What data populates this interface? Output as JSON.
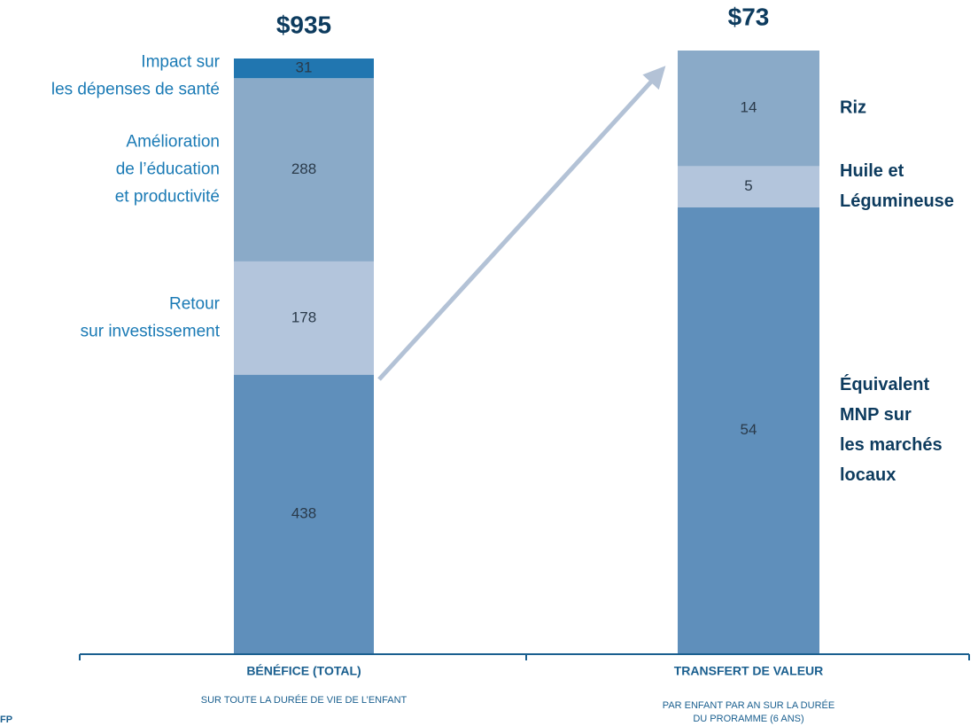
{
  "chart_data": [
    {
      "type": "stacked_bar",
      "title": "$935",
      "category": "BÉNÉFICE (TOTAL)",
      "subtitle": [
        "SUR TOUTE LA DURÉE DE VIE DE L’ENFANT"
      ],
      "ylim": [
        0,
        935
      ],
      "label_side": "left",
      "series": [
        {
          "name": [
            "sur investissement"
          ],
          "color": "#5f8fbb",
          "values": [
            438
          ]
        },
        {
          "name": [
            "Retour",
            "sur investissement"
          ],
          "color": "#b3c5dc",
          "values": [
            178
          ]
        },
        {
          "name": [
            "Amélioration",
            "de l’éducation",
            "et productivité"
          ],
          "color": "#8aaac8",
          "values": [
            288
          ]
        },
        {
          "name": [
            "Impact sur",
            "les dépenses de santé"
          ],
          "color": "#2176b0",
          "values": [
            31
          ]
        }
      ]
    },
    {
      "type": "stacked_bar",
      "title": "$73",
      "category": "TRANSFERT DE VALEUR",
      "subtitle": [
        "PAR ENFANT PAR AN SUR LA DURÉE",
        "DU PRORAMME (6 ANS)"
      ],
      "ylim": [
        0,
        73
      ],
      "label_side": "right",
      "series": [
        {
          "name": [
            "Équivalent",
            "MNP sur",
            "les marchés",
            "locaux"
          ],
          "color": "#5f8fbb",
          "values": [
            54
          ]
        },
        {
          "name": [
            "Huile et",
            "Légumineuse"
          ],
          "color": "#b3c5dc",
          "values": [
            5
          ]
        },
        {
          "name": [
            "Riz"
          ],
          "color": "#8aaac8",
          "values": [
            14
          ]
        }
      ]
    }
  ],
  "footer": "FP"
}
